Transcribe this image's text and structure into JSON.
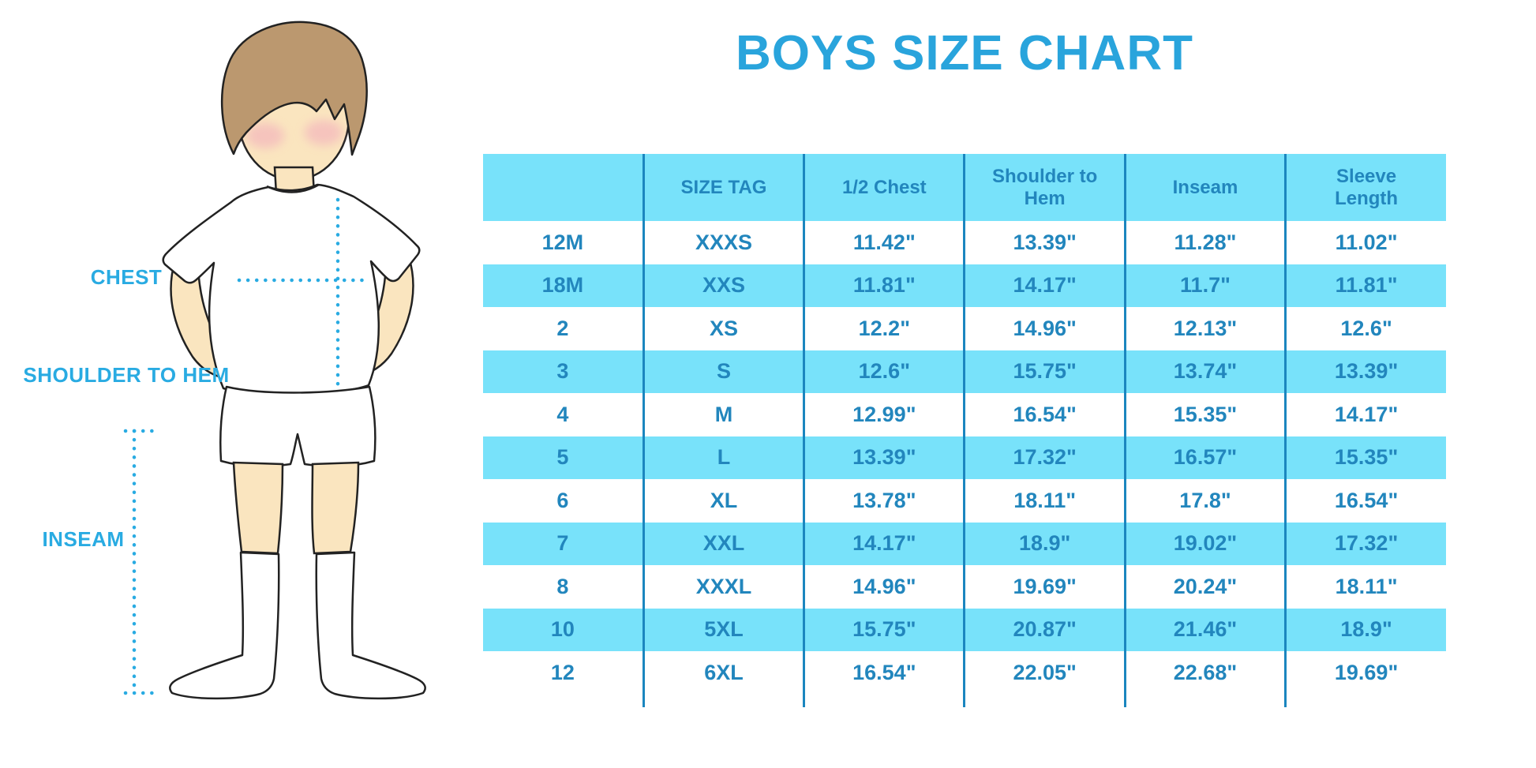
{
  "title": "BOYS SIZE CHART",
  "diagram": {
    "labels": {
      "chest": "CHEST",
      "shoulder_to_hem": "SHOULDER TO HEM",
      "inseam": "INSEAM"
    }
  },
  "chart_data": {
    "type": "table",
    "title": "BOYS SIZE CHART",
    "columns": [
      "",
      "SIZE TAG",
      "1/2 Chest",
      "Shoulder to Hem",
      "Inseam",
      "Sleeve Length"
    ],
    "rows": [
      [
        "12M",
        "XXXS",
        "11.42\"",
        "13.39\"",
        "11.28\"",
        "11.02\""
      ],
      [
        "18M",
        "XXS",
        "11.81\"",
        "14.17\"",
        "11.7\"",
        "11.81\""
      ],
      [
        "2",
        "XS",
        "12.2\"",
        "14.96\"",
        "12.13\"",
        "12.6\""
      ],
      [
        "3",
        "S",
        "12.6\"",
        "15.75\"",
        "13.74\"",
        "13.39\""
      ],
      [
        "4",
        "M",
        "12.99\"",
        "16.54\"",
        "15.35\"",
        "14.17\""
      ],
      [
        "5",
        "L",
        "13.39\"",
        "17.32\"",
        "16.57\"",
        "15.35\""
      ],
      [
        "6",
        "XL",
        "13.78\"",
        "18.11\"",
        "17.8\"",
        "16.54\""
      ],
      [
        "7",
        "XXL",
        "14.17\"",
        "18.9\"",
        "19.02\"",
        "17.32\""
      ],
      [
        "8",
        "XXXL",
        "14.96\"",
        "19.69\"",
        "20.24\"",
        "18.11\""
      ],
      [
        "10",
        "5XL",
        "15.75\"",
        "20.87\"",
        "21.46\"",
        "18.9\""
      ],
      [
        "12",
        "6XL",
        "16.54\"",
        "22.05\"",
        "22.68\"",
        "19.69\""
      ]
    ],
    "row_striping": "alternating white / light blue starting white",
    "legend_position": "none",
    "grid": "vertical column separators only"
  },
  "colors": {
    "title_blue": "#29A4DC",
    "label_blue": "#29ABE2",
    "table_text_blue": "#2286BD",
    "row_band_blue": "#78E2FA",
    "grid_line_blue": "#1B86BF",
    "dotted_line_blue": "#29ABE2",
    "hair_brown": "#BB986F",
    "skin_tone": "#FAE5BF",
    "cheek_pink": "#F2A9BC",
    "outline_black": "#222222"
  }
}
